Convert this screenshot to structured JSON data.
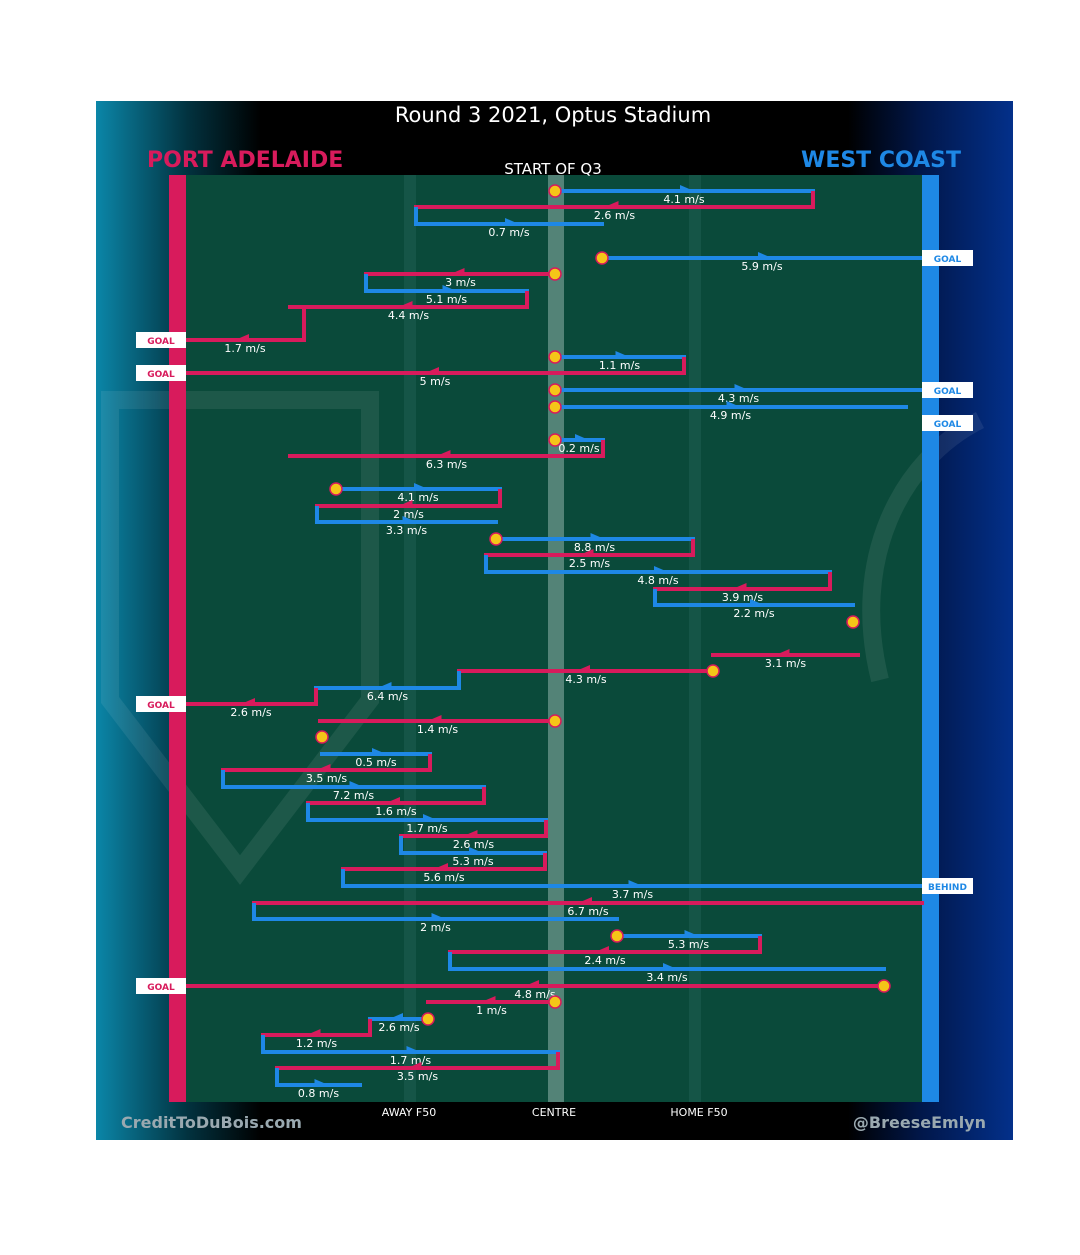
{
  "title": "Round 3 2021, Optus Stadium",
  "subtitle": "START OF Q3",
  "teams": {
    "away": {
      "name": "PORT ADELAIDE",
      "color": "#d81b5c"
    },
    "home": {
      "name": "WEST COAST",
      "color": "#1e88e5"
    }
  },
  "field_color": "#0a4a3a",
  "footer": {
    "left": "CreditToDuBois.com",
    "right": "@BreeseEmlyn",
    "away_f50": "AWAY F50",
    "centre": "CENTRE",
    "home_f50": "HOME F50"
  },
  "chart_data": {
    "type": "line",
    "x_axis": {
      "ticks": [
        "AWAY F50",
        "CENTRE",
        "HOME F50"
      ]
    },
    "chains": [
      {
        "team": "home",
        "start": "centre bounce",
        "segments": [
          {
            "team": "home",
            "speed": "4.1 m/s"
          },
          {
            "team": "away",
            "speed": "2.6 m/s"
          },
          {
            "team": "home",
            "speed": "0.7 m/s"
          }
        ],
        "result": null
      },
      {
        "team": "home",
        "start": "stoppage",
        "segments": [
          {
            "team": "home",
            "speed": "5.9 m/s"
          }
        ],
        "result": "GOAL"
      },
      {
        "team": "away",
        "start": "centre bounce",
        "segments": [
          {
            "team": "away",
            "speed": "3 m/s"
          },
          {
            "team": "home",
            "speed": "5.1 m/s"
          },
          {
            "team": "away",
            "speed": "4.4 m/s"
          },
          {
            "team": "away",
            "speed": "1.7 m/s"
          }
        ],
        "result": "GOAL"
      },
      {
        "team": "home",
        "start": "centre bounce",
        "segments": [
          {
            "team": "home",
            "speed": "1.1 m/s"
          },
          {
            "team": "away",
            "speed": "5 m/s"
          }
        ],
        "result": "GOAL"
      },
      {
        "team": "home",
        "start": "centre bounce",
        "segments": [
          {
            "team": "home",
            "speed": "4.3 m/s"
          }
        ],
        "result": "GOAL"
      },
      {
        "team": "home",
        "start": "centre bounce",
        "segments": [
          {
            "team": "home",
            "speed": "4.9 m/s"
          }
        ],
        "result": "GOAL"
      },
      {
        "team": "home",
        "start": "centre bounce",
        "segments": [
          {
            "team": "home",
            "speed": "0.2 m/s"
          },
          {
            "team": "away",
            "speed": "6.3 m/s"
          }
        ],
        "result": null
      },
      {
        "team": "home",
        "start": "stoppage",
        "segments": [
          {
            "team": "home",
            "speed": "4.1 m/s"
          },
          {
            "team": "away",
            "speed": "2 m/s"
          },
          {
            "team": "home",
            "speed": "3.3 m/s"
          }
        ],
        "result": null
      },
      {
        "team": "home",
        "start": "stoppage",
        "segments": [
          {
            "team": "home",
            "speed": "8.8 m/s"
          },
          {
            "team": "away",
            "speed": "2.5 m/s"
          },
          {
            "team": "home",
            "speed": "4.8 m/s"
          },
          {
            "team": "away",
            "speed": "3.9 m/s"
          },
          {
            "team": "home",
            "speed": "2.2 m/s"
          }
        ],
        "result": null
      },
      {
        "team": "home",
        "start": "stoppage",
        "segments": [
          {
            "team": "away",
            "speed": "3.1 m/s"
          }
        ],
        "result": null
      },
      {
        "team": "away",
        "start": "stoppage",
        "segments": [
          {
            "team": "away",
            "speed": "4.3 m/s"
          },
          {
            "team": "home",
            "speed": "6.4 m/s"
          },
          {
            "team": "away",
            "speed": "2.6 m/s"
          }
        ],
        "result": "GOAL"
      },
      {
        "team": "away",
        "start": "centre bounce",
        "segments": [
          {
            "team": "away",
            "speed": "1.4 m/s"
          }
        ],
        "result": null
      },
      {
        "team": "away",
        "start": "stoppage",
        "segments": [
          {
            "team": "home",
            "speed": "0.5 m/s"
          },
          {
            "team": "away",
            "speed": "3.5 m/s"
          },
          {
            "team": "home",
            "speed": "7.2 m/s"
          },
          {
            "team": "away",
            "speed": "1.6 m/s"
          },
          {
            "team": "home",
            "speed": "1.7 m/s"
          },
          {
            "team": "away",
            "speed": "2.6 m/s"
          },
          {
            "team": "home",
            "speed": "5.3 m/s"
          },
          {
            "team": "away",
            "speed": "5.6 m/s"
          },
          {
            "team": "home",
            "speed": "3.7 m/s"
          }
        ],
        "result": "BEHIND"
      },
      {
        "team": "away",
        "start": "kick-in",
        "segments": [
          {
            "team": "away",
            "speed": "6.7 m/s"
          },
          {
            "team": "home",
            "speed": "2 m/s"
          }
        ],
        "result": null
      },
      {
        "team": "home",
        "start": "stoppage",
        "segments": [
          {
            "team": "home",
            "speed": "5.3 m/s"
          },
          {
            "team": "away",
            "speed": "2.4 m/s"
          },
          {
            "team": "home",
            "speed": "3.4 m/s"
          }
        ],
        "result": null
      },
      {
        "team": "away",
        "start": "stoppage",
        "segments": [
          {
            "team": "away",
            "speed": "4.8 m/s"
          }
        ],
        "result": "GOAL"
      },
      {
        "team": "away",
        "start": "centre bounce",
        "segments": [
          {
            "team": "away",
            "speed": "1 m/s"
          }
        ],
        "result": null
      },
      {
        "team": "home",
        "start": "stoppage",
        "segments": [
          {
            "team": "home",
            "speed": "2.6 m/s"
          },
          {
            "team": "away",
            "speed": "1.2 m/s"
          },
          {
            "team": "home",
            "speed": "1.7 m/s"
          },
          {
            "team": "away",
            "speed": "3.5 m/s"
          },
          {
            "team": "home",
            "speed": "0.8 m/s"
          }
        ],
        "result": null
      }
    ]
  }
}
